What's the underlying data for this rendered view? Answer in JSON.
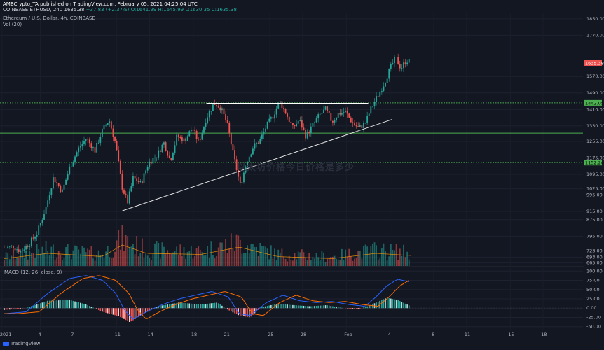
{
  "header": {
    "line1": "AMBCrypto_TA published on TradingView.com, February 05, 2021 04:25:04 UTC",
    "symbol": "COINBASE:ETHUSD, 240",
    "price": "1635.38",
    "change": "+37.83 (+2.37%)",
    "ohlc": "O:1641.99 H:1645.99 L:1630.35 C:1635.38",
    "title": "Ethereum / U.S. Dollar, 4h, COINBASE",
    "vol": "Vol (20)"
  },
  "macd_label": "MACD (12, 26, close, 9)",
  "watermark": "以太坊价格今日价格是多少",
  "brand": "TradingView",
  "colors": {
    "background": "#131722",
    "up": "#26a69a",
    "down": "#ef5350",
    "macd": "#2962ff",
    "signal": "#ff6d00",
    "level_line": "#4caf50"
  },
  "chart_data": {
    "type": "candlestick",
    "price_axis_ticks": [
      1850,
      1770,
      1570,
      1490,
      1410,
      1330,
      1255,
      1175,
      1095,
      1025,
      995,
      915,
      875,
      795,
      723,
      693,
      665
    ],
    "price_ylim": [
      650,
      1880
    ],
    "x_tick_labels": [
      "2021",
      "4",
      "7",
      "11",
      "14",
      "18",
      "21",
      "25",
      "28",
      "Feb",
      "4",
      "8",
      "11",
      "15",
      "18"
    ],
    "macd_ticks": [
      "100.00",
      "75.00",
      "50.00",
      "25.00",
      "0.00",
      "-25.00",
      "-50.00"
    ],
    "macd_ylim": [
      -60,
      110
    ],
    "levels": [
      {
        "price": 1442.05,
        "label": "1442.05",
        "style": "dotted"
      },
      {
        "price": 1152.24,
        "label": "1152.24",
        "style": "dotted"
      },
      {
        "price": 1295,
        "label": "",
        "style": "solid"
      }
    ],
    "current_price": {
      "value": 1635.38,
      "label": "1635.38"
    },
    "resistance": {
      "price": 1440,
      "from_day": 18.5,
      "to_day": 33.3
    },
    "trendline": {
      "from": [
        10.8,
        918
      ],
      "to": [
        35.5,
        1362
      ]
    },
    "close_path": [
      [
        0,
        738
      ],
      [
        0.8,
        745
      ],
      [
        1.5,
        722
      ],
      [
        2.3,
        760
      ],
      [
        3,
        810
      ],
      [
        3.8,
        930
      ],
      [
        4.5,
        1080
      ],
      [
        5.3,
        1010
      ],
      [
        6,
        1130
      ],
      [
        6.8,
        1220
      ],
      [
        7.5,
        1270
      ],
      [
        8.3,
        1210
      ],
      [
        9,
        1310
      ],
      [
        9.6,
        1360
      ],
      [
        10.2,
        1240
      ],
      [
        10.8,
        1030
      ],
      [
        11.3,
        960
      ],
      [
        11.8,
        1080
      ],
      [
        12.5,
        1050
      ],
      [
        13.2,
        1150
      ],
      [
        14,
        1190
      ],
      [
        14.6,
        1250
      ],
      [
        15.2,
        1160
      ],
      [
        15.8,
        1280
      ],
      [
        16.5,
        1260
      ],
      [
        17.2,
        1320
      ],
      [
        17.8,
        1250
      ],
      [
        18.5,
        1370
      ],
      [
        19.2,
        1440
      ],
      [
        19.8,
        1420
      ],
      [
        20.4,
        1340
      ],
      [
        21,
        1180
      ],
      [
        21.6,
        1040
      ],
      [
        22.2,
        1160
      ],
      [
        22.8,
        1230
      ],
      [
        23.4,
        1260
      ],
      [
        24,
        1330
      ],
      [
        24.6,
        1380
      ],
      [
        25.2,
        1450
      ],
      [
        25.8,
        1390
      ],
      [
        26.4,
        1320
      ],
      [
        27,
        1360
      ],
      [
        27.6,
        1280
      ],
      [
        28.2,
        1330
      ],
      [
        28.8,
        1380
      ],
      [
        29.4,
        1410
      ],
      [
        30,
        1350
      ],
      [
        30.6,
        1390
      ],
      [
        31.2,
        1400
      ],
      [
        31.8,
        1350
      ],
      [
        32.4,
        1320
      ],
      [
        33,
        1340
      ],
      [
        33.6,
        1420
      ],
      [
        34.2,
        1480
      ],
      [
        34.8,
        1540
      ],
      [
        35.3,
        1610
      ],
      [
        35.8,
        1660
      ],
      [
        36.3,
        1610
      ],
      [
        36.8,
        1650
      ],
      [
        37.2,
        1635
      ]
    ],
    "volume_profile": [
      [
        0,
        0.35
      ],
      [
        4,
        0.6
      ],
      [
        9,
        0.45
      ],
      [
        10.8,
        1.0
      ],
      [
        13,
        0.6
      ],
      [
        18,
        0.55
      ],
      [
        21.5,
        0.9
      ],
      [
        25,
        0.45
      ],
      [
        30,
        0.35
      ],
      [
        34,
        0.6
      ],
      [
        37.2,
        0.5
      ]
    ],
    "macd_path": [
      [
        0,
        -15
      ],
      [
        2,
        -10
      ],
      [
        4,
        40
      ],
      [
        6,
        80
      ],
      [
        7.5,
        88
      ],
      [
        9,
        75
      ],
      [
        10.2,
        40
      ],
      [
        11,
        -5
      ],
      [
        11.8,
        -30
      ],
      [
        13,
        -10
      ],
      [
        14.5,
        10
      ],
      [
        16,
        25
      ],
      [
        17.5,
        35
      ],
      [
        19,
        45
      ],
      [
        20.5,
        30
      ],
      [
        21.5,
        -15
      ],
      [
        22.5,
        -20
      ],
      [
        24,
        15
      ],
      [
        25.5,
        35
      ],
      [
        27,
        20
      ],
      [
        28.5,
        15
      ],
      [
        30,
        18
      ],
      [
        31.5,
        10
      ],
      [
        33,
        5
      ],
      [
        34,
        30
      ],
      [
        35,
        60
      ],
      [
        36,
        78
      ],
      [
        37.2,
        70
      ]
    ],
    "macd_histogram_path": [
      [
        0,
        -5
      ],
      [
        2,
        0
      ],
      [
        4,
        20
      ],
      [
        6,
        22
      ],
      [
        7.5,
        10
      ],
      [
        9,
        -10
      ],
      [
        10.5,
        -22
      ],
      [
        11.5,
        -38
      ],
      [
        12.5,
        -20
      ],
      [
        14,
        5
      ],
      [
        16,
        15
      ],
      [
        18,
        10
      ],
      [
        19.5,
        15
      ],
      [
        20.5,
        -5
      ],
      [
        21.5,
        -20
      ],
      [
        22.5,
        -25
      ],
      [
        23.5,
        2
      ],
      [
        25,
        12
      ],
      [
        26.5,
        8
      ],
      [
        28,
        5
      ],
      [
        29.5,
        8
      ],
      [
        31,
        0
      ],
      [
        32.5,
        -3
      ],
      [
        33.5,
        8
      ],
      [
        35,
        28
      ],
      [
        36,
        22
      ],
      [
        37.2,
        5
      ]
    ]
  }
}
